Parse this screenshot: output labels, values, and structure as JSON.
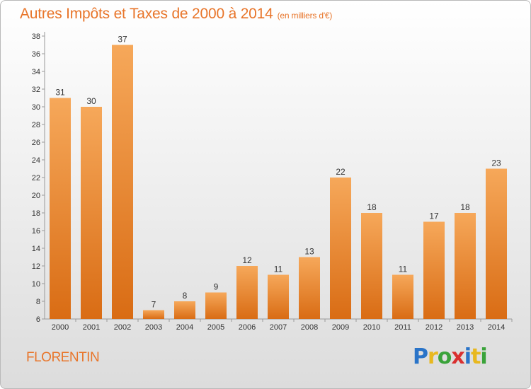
{
  "title": "Autres Impôts et Taxes de 2000 à 2014",
  "unit": "(en milliers d'€)",
  "commune": "FLORENTIN",
  "logo": {
    "text": "Proxiti",
    "letters": [
      "P",
      "r",
      "o",
      "x",
      "i",
      "t",
      "i"
    ],
    "colors": [
      "#2a74c8",
      "#e8b81f",
      "#3aa33a",
      "#d93030",
      "#2a74c8",
      "#e8b81f",
      "#3aa33a"
    ]
  },
  "colors": {
    "bar_top": "#f6a85a",
    "bar_bottom": "#d96c14",
    "accent": "#e8752a"
  },
  "chart_data": {
    "type": "bar",
    "categories": [
      "2000",
      "2001",
      "2002",
      "2003",
      "2004",
      "2005",
      "2006",
      "2007",
      "2008",
      "2009",
      "2010",
      "2011",
      "2012",
      "2013",
      "2014"
    ],
    "values": [
      31,
      30,
      37,
      7,
      8,
      9,
      12,
      11,
      13,
      22,
      18,
      11,
      17,
      18,
      23
    ],
    "title": "Autres Impôts et Taxes de 2000 à 2014",
    "ylim": [
      6,
      38
    ],
    "yticks": [
      6,
      8,
      10,
      12,
      14,
      16,
      18,
      20,
      22,
      24,
      26,
      28,
      30,
      32,
      34,
      36,
      38
    ],
    "grid": false,
    "legend": "none"
  }
}
